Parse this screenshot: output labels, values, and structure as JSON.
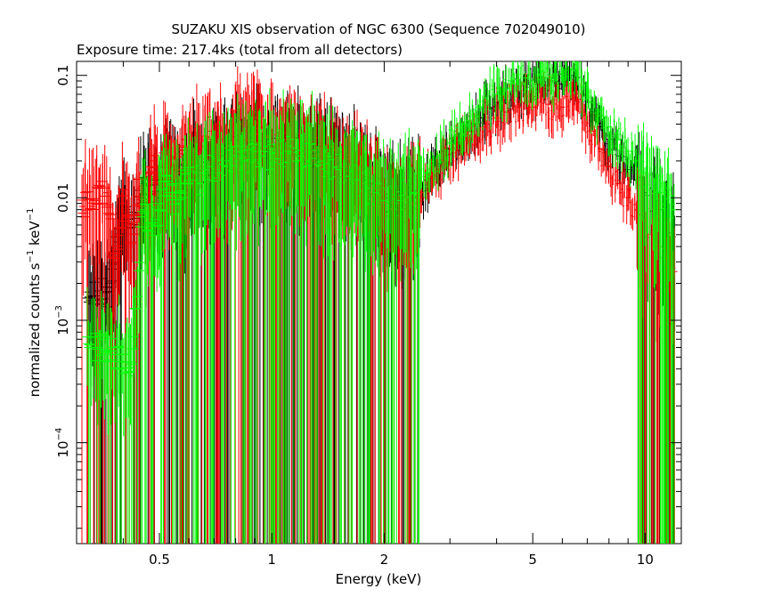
{
  "chart_data": {
    "type": "scatter",
    "title": "SUZAKU XIS observation of NGC 6300 (Sequence 702049010)",
    "subtitle": "Exposure time: 217.4ks (total from all detectors)",
    "xlabel": "Energy (keV)",
    "ylabel": {
      "main": "normalized counts s",
      "exp1": "−1",
      "mid": " keV",
      "exp2": "−1"
    },
    "xscale": "log",
    "yscale": "log",
    "xlim": [
      0.3,
      12.5
    ],
    "ylim": [
      1.5e-05,
      0.13
    ],
    "x_ticks": [
      {
        "value": 0.5,
        "label": "0.5"
      },
      {
        "value": 1,
        "label": "1"
      },
      {
        "value": 2,
        "label": "2"
      },
      {
        "value": 5,
        "label": "5"
      },
      {
        "value": 10,
        "label": "10"
      }
    ],
    "y_ticks": [
      {
        "value": 0.1,
        "label": "0.1",
        "kind": "plain"
      },
      {
        "value": 0.01,
        "label": "0.01",
        "kind": "plain"
      },
      {
        "value": 0.001,
        "label": "10",
        "exp": "−3",
        "kind": "pow"
      },
      {
        "value": 0.0001,
        "label": "10",
        "exp": "−4",
        "kind": "pow"
      }
    ],
    "grid": false,
    "legend": "none",
    "colors": {
      "black": "#000000",
      "red": "#ff0000",
      "green": "#00ff00"
    },
    "series": [
      {
        "color": "#ff0000",
        "points": [
          [
            0.31,
            0.0085
          ],
          [
            0.33,
            0.0085
          ],
          [
            0.36,
            0.011
          ],
          [
            0.38,
            0.003
          ],
          [
            0.4,
            0.009
          ],
          [
            0.42,
            0.004
          ],
          [
            0.44,
            0.012
          ],
          [
            0.46,
            0.007
          ],
          [
            0.48,
            0.02
          ],
          [
            0.5,
            0.009
          ],
          [
            0.52,
            0.025
          ],
          [
            0.55,
            0.012
          ],
          [
            0.58,
            0.03
          ],
          [
            0.6,
            0.015
          ],
          [
            0.62,
            0.028
          ],
          [
            0.65,
            0.018
          ],
          [
            0.68,
            0.035
          ],
          [
            0.7,
            0.02
          ],
          [
            0.73,
            0.03
          ],
          [
            0.76,
            0.022
          ],
          [
            0.8,
            0.04
          ],
          [
            0.85,
            0.03
          ],
          [
            0.9,
            0.045
          ],
          [
            0.95,
            0.03
          ],
          [
            1.0,
            0.028
          ],
          [
            1.1,
            0.03
          ],
          [
            1.2,
            0.025
          ],
          [
            1.3,
            0.024
          ],
          [
            1.4,
            0.022
          ],
          [
            1.5,
            0.02
          ],
          [
            1.6,
            0.018
          ],
          [
            1.7,
            0.019
          ],
          [
            1.8,
            0.015
          ],
          [
            1.9,
            0.012
          ],
          [
            2.0,
            0.009
          ],
          [
            2.1,
            0.008
          ],
          [
            2.2,
            0.009
          ],
          [
            2.3,
            0.008
          ],
          [
            2.4,
            0.009
          ],
          [
            2.5,
            0.011
          ],
          [
            2.7,
            0.015
          ],
          [
            2.9,
            0.02
          ],
          [
            3.1,
            0.025
          ],
          [
            3.4,
            0.03
          ],
          [
            3.7,
            0.038
          ],
          [
            4.0,
            0.045
          ],
          [
            4.3,
            0.05
          ],
          [
            4.6,
            0.055
          ],
          [
            5.0,
            0.055
          ],
          [
            5.5,
            0.058
          ],
          [
            6.0,
            0.055
          ],
          [
            6.4,
            0.065
          ],
          [
            6.8,
            0.05
          ],
          [
            7.2,
            0.035
          ],
          [
            7.6,
            0.025
          ],
          [
            8.0,
            0.018
          ],
          [
            8.5,
            0.013
          ],
          [
            9.0,
            0.01
          ],
          [
            9.5,
            0.008
          ],
          [
            10.0,
            0.0065
          ],
          [
            10.5,
            0.005
          ],
          [
            11.0,
            0.004
          ],
          [
            11.5,
            0.0032
          ],
          [
            12.0,
            0.0025
          ]
        ]
      },
      {
        "color": "#000000",
        "points": [
          [
            0.32,
            0.0017
          ],
          [
            0.37,
            0.0017
          ],
          [
            0.4,
            0.0085
          ],
          [
            0.43,
            0.006
          ],
          [
            0.46,
            0.013
          ],
          [
            0.5,
            0.01
          ],
          [
            0.54,
            0.018
          ],
          [
            0.58,
            0.013
          ],
          [
            0.62,
            0.02
          ],
          [
            0.66,
            0.017
          ],
          [
            0.7,
            0.022
          ],
          [
            0.75,
            0.02
          ],
          [
            0.8,
            0.025
          ],
          [
            0.85,
            0.022
          ],
          [
            0.9,
            0.028
          ],
          [
            0.95,
            0.025
          ],
          [
            1.0,
            0.026
          ],
          [
            1.1,
            0.027
          ],
          [
            1.2,
            0.024
          ],
          [
            1.3,
            0.023
          ],
          [
            1.4,
            0.021
          ],
          [
            1.5,
            0.019
          ],
          [
            1.6,
            0.017
          ],
          [
            1.7,
            0.016
          ],
          [
            1.8,
            0.014
          ],
          [
            1.9,
            0.012
          ],
          [
            2.0,
            0.01
          ],
          [
            2.2,
            0.009
          ],
          [
            2.4,
            0.01
          ],
          [
            2.6,
            0.014
          ],
          [
            2.8,
            0.019
          ],
          [
            3.0,
            0.025
          ],
          [
            3.3,
            0.035
          ],
          [
            3.6,
            0.045
          ],
          [
            4.0,
            0.06
          ],
          [
            4.4,
            0.07
          ],
          [
            4.8,
            0.08
          ],
          [
            5.2,
            0.085
          ],
          [
            5.6,
            0.09
          ],
          [
            6.0,
            0.085
          ],
          [
            6.4,
            0.1
          ],
          [
            6.8,
            0.07
          ],
          [
            7.2,
            0.05
          ],
          [
            7.6,
            0.038
          ],
          [
            8.0,
            0.03
          ],
          [
            8.5,
            0.022
          ],
          [
            9.0,
            0.017
          ],
          [
            9.5,
            0.014
          ],
          [
            10.0,
            0.011
          ],
          [
            11.0,
            0.008
          ],
          [
            12.0,
            0.006
          ]
        ]
      },
      {
        "color": "#00ff00",
        "points": [
          [
            0.32,
            0.0006
          ],
          [
            0.37,
            0.0006
          ],
          [
            0.42,
            0.00035
          ],
          [
            0.45,
            0.008
          ],
          [
            0.48,
            0.006
          ],
          [
            0.52,
            0.012
          ],
          [
            0.56,
            0.009
          ],
          [
            0.6,
            0.016
          ],
          [
            0.64,
            0.013
          ],
          [
            0.68,
            0.018
          ],
          [
            0.72,
            0.016
          ],
          [
            0.76,
            0.02
          ],
          [
            0.8,
            0.022
          ],
          [
            0.85,
            0.02
          ],
          [
            0.9,
            0.024
          ],
          [
            0.95,
            0.022
          ],
          [
            1.0,
            0.023
          ],
          [
            1.1,
            0.024
          ],
          [
            1.2,
            0.022
          ],
          [
            1.3,
            0.021
          ],
          [
            1.4,
            0.019
          ],
          [
            1.5,
            0.017
          ],
          [
            1.6,
            0.015
          ],
          [
            1.7,
            0.014
          ],
          [
            1.8,
            0.012
          ],
          [
            1.9,
            0.011
          ],
          [
            2.0,
            0.0095
          ],
          [
            2.2,
            0.0095
          ],
          [
            2.4,
            0.011
          ],
          [
            2.6,
            0.016
          ],
          [
            2.8,
            0.022
          ],
          [
            3.0,
            0.028
          ],
          [
            3.3,
            0.04
          ],
          [
            3.6,
            0.055
          ],
          [
            4.0,
            0.07
          ],
          [
            4.4,
            0.085
          ],
          [
            4.8,
            0.095
          ],
          [
            5.2,
            0.1
          ],
          [
            5.6,
            0.1
          ],
          [
            6.0,
            0.095
          ],
          [
            6.4,
            0.11
          ],
          [
            6.8,
            0.08
          ],
          [
            7.2,
            0.06
          ],
          [
            7.6,
            0.047
          ],
          [
            8.0,
            0.038
          ],
          [
            8.5,
            0.03
          ],
          [
            9.0,
            0.024
          ],
          [
            9.5,
            0.02
          ],
          [
            10.0,
            0.016
          ],
          [
            11.0,
            0.011
          ],
          [
            12.0,
            0.008
          ]
        ]
      }
    ]
  }
}
